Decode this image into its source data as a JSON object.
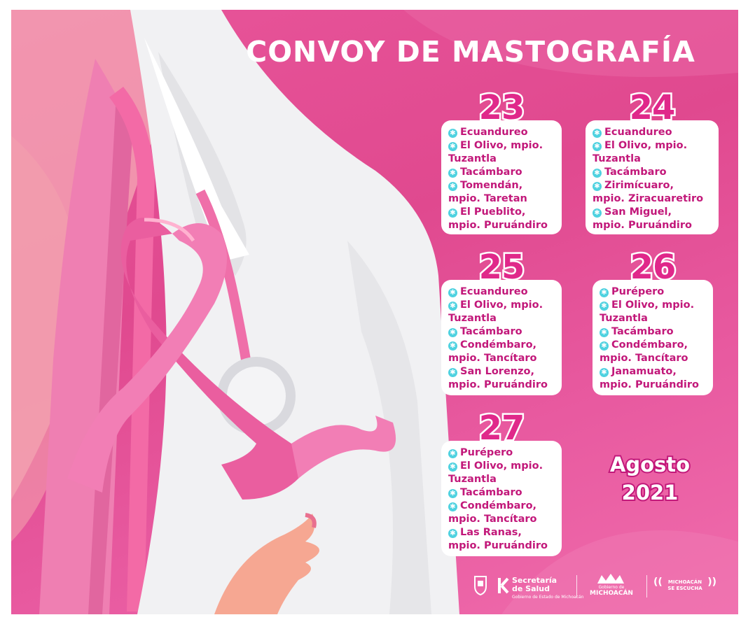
{
  "title": "CONVOY DE MASTOGRAFÍA",
  "days": [
    {
      "day": "23",
      "locations": [
        "Ecuandureo",
        "El Olivo, mpio.\nTuzantla",
        "Tacámbaro",
        "Tomendán,\nmpio. Taretan",
        "El Pueblito,\nmpio. Puruándiro"
      ]
    },
    {
      "day": "24",
      "locations": [
        "Ecuandureo",
        "El Olivo, mpio.\nTuzantla",
        "Tacámbaro",
        "Zirimícuaro,\nmpio. Ziracuaretiro",
        "San Miguel,\nmpio. Puruándiro"
      ]
    },
    {
      "day": "25",
      "locations": [
        "Ecuandureo",
        "El Olivo, mpio.\nTuzantla",
        "Tacámbaro",
        "Condémbaro,\nmpio. Tancítaro",
        "San Lorenzo,\nmpio. Puruándiro"
      ]
    },
    {
      "day": "26",
      "locations": [
        "Purépero",
        "El Olivo, mpio.\nTuzantla",
        "Tacámbaro",
        "Condémbaro,\nmpio. Tancítaro",
        "Janamuato,\nmpio. Puruándiro"
      ]
    },
    {
      "day": "27",
      "locations": [
        "Purépero",
        "El Olivo, mpio.\nTuzantla",
        "Tacámbaro",
        "Condémbaro,\nmpio. Tancítaro",
        "Las Ranas,\nmpio. Puruándiro"
      ]
    }
  ],
  "month": "Agosto",
  "year": "2021",
  "footer": {
    "secretaria_line1": "Secretaría",
    "secretaria_line2": "de Salud",
    "secretaria_sub": "Gobierno de Estado de Michoacán",
    "gobierno_small": "Gobierno de",
    "gobierno_name": "MICHOACÁN",
    "escucha_line1": "MICHOACÁN",
    "escucha_line2": "SE ESCUCHA"
  },
  "colors": {
    "background": "#e0498f",
    "accent": "#c2187a",
    "bullet": "#4fd2e0",
    "card": "#ffffff"
  }
}
